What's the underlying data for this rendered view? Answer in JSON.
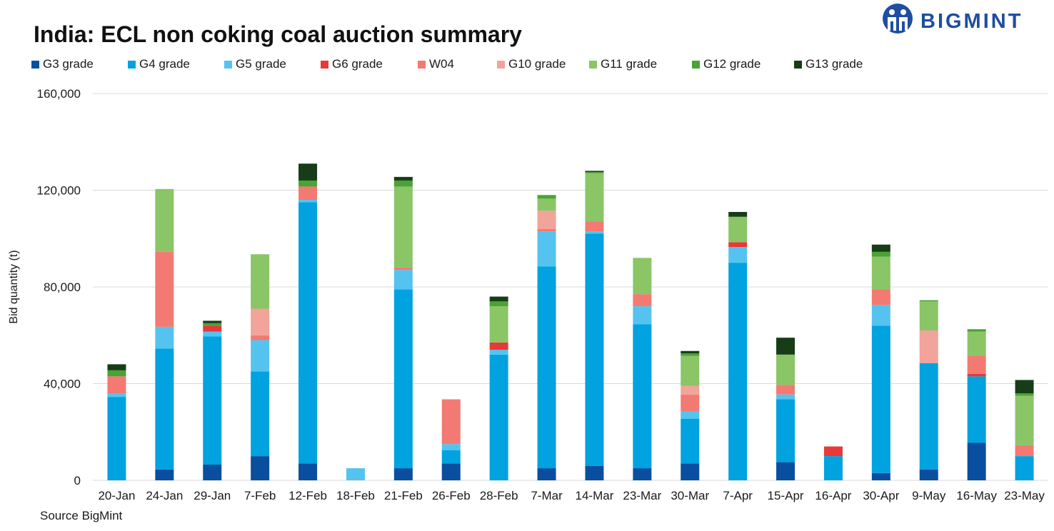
{
  "title": "India: ECL non coking coal auction summary",
  "brand": {
    "name": "BIGMINT",
    "color": "#1f4ea1",
    "icon": "bigmint-logo-icon"
  },
  "source": "Source BigMint",
  "chart_data": {
    "type": "bar",
    "stacked": true,
    "title": "India: ECL non coking coal auction summary",
    "xlabel": "",
    "ylabel": "Bid quantity (t)",
    "ylim": [
      0,
      160000
    ],
    "yticks": [
      0,
      40000,
      80000,
      120000,
      160000
    ],
    "ytick_labels": [
      "0",
      "40,000",
      "80,000",
      "120,000",
      "160,000"
    ],
    "grid": true,
    "legend_position": "top",
    "categories": [
      "20-Jan",
      "24-Jan",
      "29-Jan",
      "7-Feb",
      "12-Feb",
      "18-Feb",
      "21-Feb",
      "26-Feb",
      "28-Feb",
      "7-Mar",
      "14-Mar",
      "23-Mar",
      "30-Mar",
      "7-Apr",
      "15-Apr",
      "16-Apr",
      "30-Apr",
      "9-May",
      "16-May",
      "23-May"
    ],
    "series": [
      {
        "name": "G3 grade",
        "color": "#0a4ea0",
        "values": [
          0,
          4500,
          6500,
          10000,
          7000,
          0,
          5000,
          7000,
          0,
          5000,
          6000,
          5000,
          7000,
          0,
          7500,
          0,
          3000,
          4500,
          15500,
          0
        ]
      },
      {
        "name": "G4 grade",
        "color": "#00a2df",
        "values": [
          34500,
          50000,
          53000,
          35000,
          108000,
          0,
          74000,
          5500,
          52000,
          83500,
          96000,
          59500,
          18500,
          90000,
          26000,
          10000,
          61000,
          44000,
          27500,
          10000
        ]
      },
      {
        "name": "G5 grade",
        "color": "#55c3f0",
        "values": [
          1500,
          9000,
          2000,
          13000,
          1000,
          5000,
          8000,
          2500,
          2000,
          14500,
          1000,
          7500,
          3000,
          6500,
          2000,
          0,
          8500,
          0,
          0,
          0
        ]
      },
      {
        "name": "G6 grade",
        "color": "#e63939",
        "values": [
          0,
          0,
          2500,
          0,
          0,
          0,
          0,
          0,
          3000,
          0,
          0,
          0,
          0,
          2000,
          0,
          4000,
          0,
          0,
          1000,
          0
        ]
      },
      {
        "name": "W04",
        "color": "#f27a72",
        "values": [
          7000,
          31000,
          0,
          2000,
          5500,
          0,
          1000,
          18500,
          0,
          1000,
          4000,
          5000,
          7000,
          0,
          4000,
          0,
          6500,
          0,
          7500,
          4500
        ]
      },
      {
        "name": "G10 grade",
        "color": "#f2a39a",
        "values": [
          0,
          0,
          0,
          11000,
          0,
          0,
          0,
          0,
          0,
          7500,
          0,
          0,
          3500,
          0,
          0,
          0,
          0,
          13500,
          0,
          0
        ]
      },
      {
        "name": "G11 grade",
        "color": "#8ac566",
        "values": [
          0,
          26000,
          0,
          22500,
          0,
          0,
          33500,
          0,
          15000,
          5000,
          20000,
          15000,
          12500,
          10500,
          12500,
          0,
          13500,
          12000,
          10000,
          20500
        ]
      },
      {
        "name": "G12 grade",
        "color": "#4aa334",
        "values": [
          2500,
          0,
          1000,
          0,
          2500,
          0,
          2500,
          0,
          2000,
          1500,
          500,
          0,
          1000,
          0,
          0,
          0,
          2000,
          500,
          1000,
          1000
        ]
      },
      {
        "name": "G13 grade",
        "color": "#163d18",
        "values": [
          2500,
          0,
          1000,
          0,
          7000,
          0,
          1500,
          0,
          2000,
          0,
          500,
          0,
          1000,
          2000,
          7000,
          0,
          3000,
          0,
          0,
          5500
        ]
      }
    ]
  }
}
